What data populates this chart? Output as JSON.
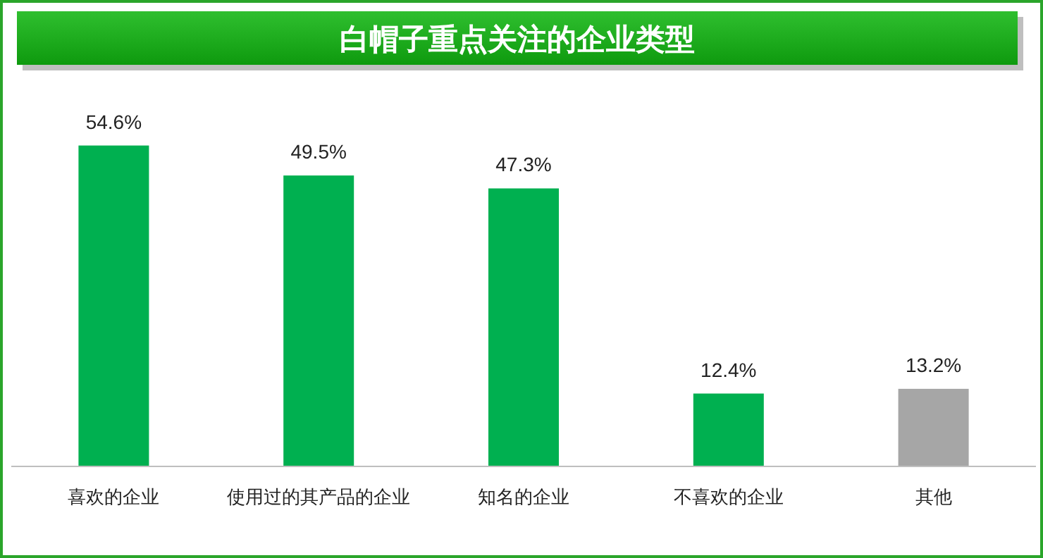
{
  "chart_data": {
    "type": "bar",
    "title": "白帽子重点关注的企业类型",
    "categories": [
      "喜欢的企业",
      "使用过的其产品的企业",
      "知名的企业",
      "不喜欢的企业",
      "其他"
    ],
    "values": [
      54.6,
      49.5,
      47.3,
      12.4,
      13.2
    ],
    "colors": [
      "#00b050",
      "#00b050",
      "#00b050",
      "#00b050",
      "#a6a6a6"
    ],
    "value_labels": [
      "54.6%",
      "49.5%",
      "47.3%",
      "12.4%",
      "13.2%"
    ],
    "grid": false
  }
}
